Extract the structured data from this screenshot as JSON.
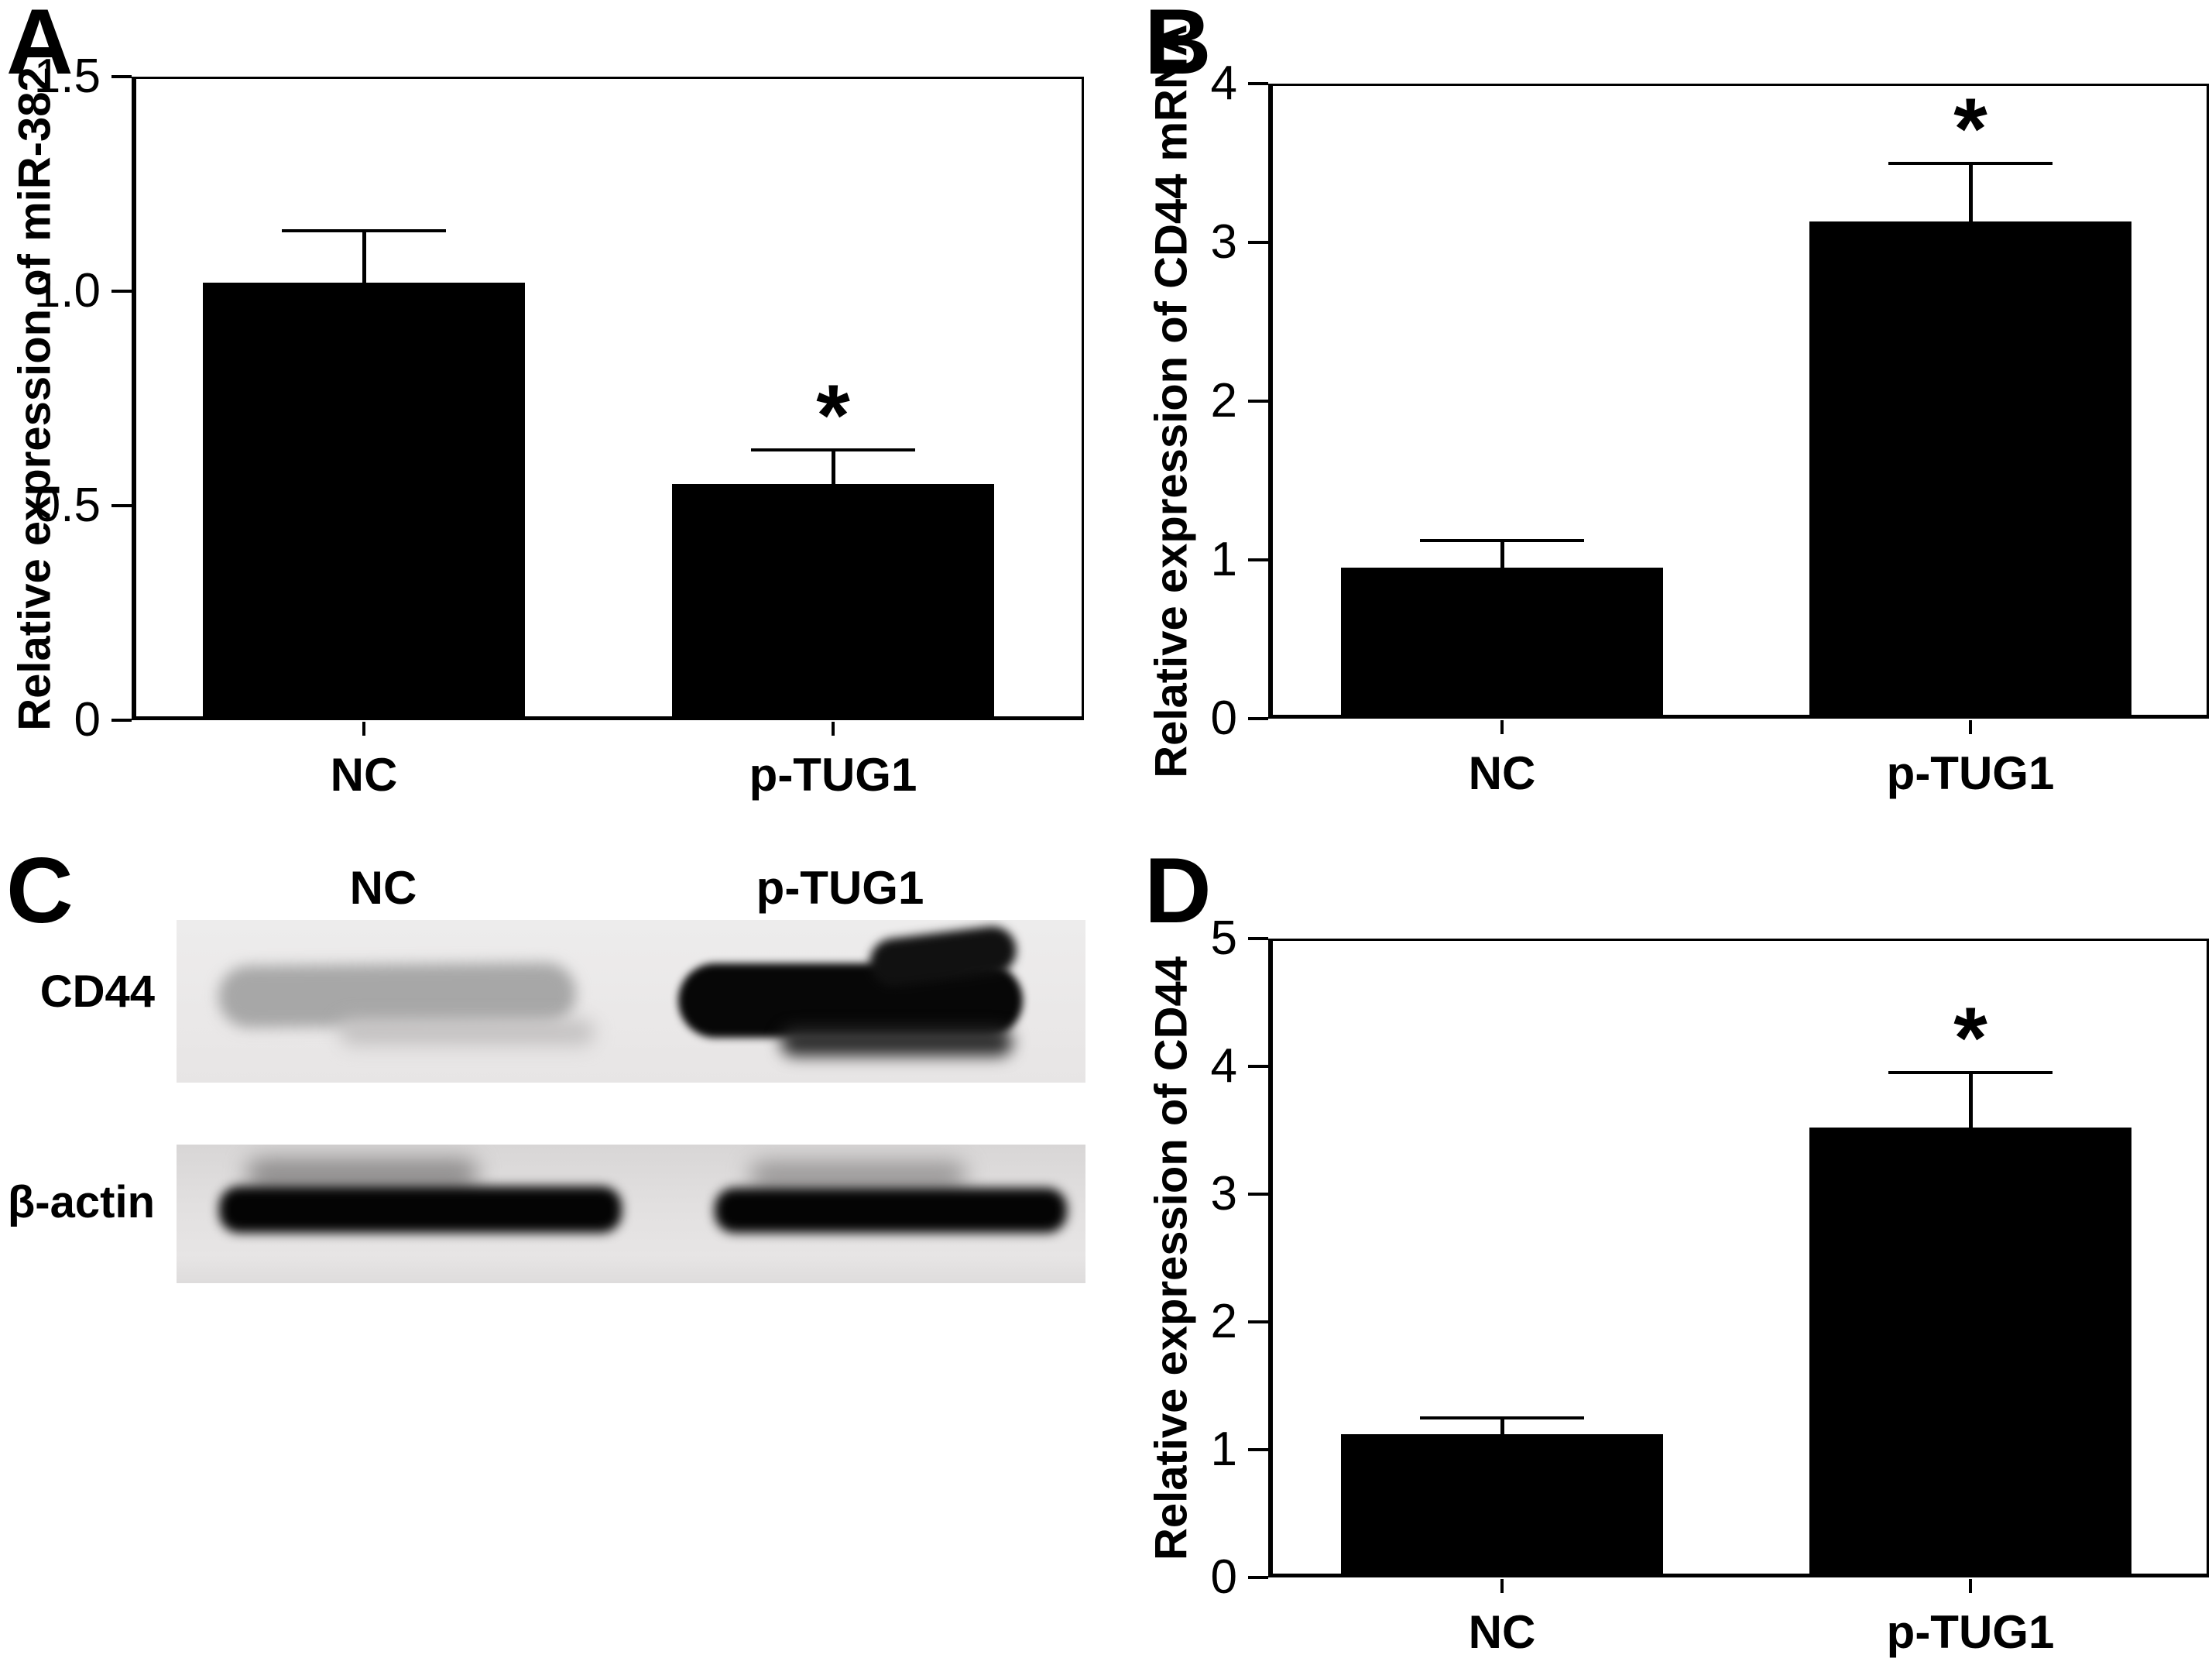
{
  "figure": {
    "background": "#ffffff",
    "bar_color": "#000000",
    "letters": {
      "A": "A",
      "B": "B",
      "C": "C",
      "D": "D"
    }
  },
  "chart_data": [
    {
      "panel": "A",
      "type": "bar",
      "title": "",
      "xlabel": "",
      "ylabel": "Relative expression of miR-382",
      "categories": [
        "NC",
        "p-TUG1"
      ],
      "values": [
        1.02,
        0.55
      ],
      "errors_upper": [
        0.12,
        0.08
      ],
      "significance": [
        "",
        "*"
      ],
      "ylim": [
        0,
        1.5
      ],
      "yticks": [
        0,
        0.5,
        1,
        1.5
      ],
      "ytick_labels": [
        "0",
        "0.5",
        "1.0",
        "1.5"
      ],
      "grid": false,
      "legend": "none",
      "bar_color": "#000000"
    },
    {
      "panel": "B",
      "type": "bar",
      "title": "",
      "xlabel": "",
      "ylabel": "Relative expression of CD44 mRNA",
      "categories": [
        "NC",
        "p-TUG1"
      ],
      "values": [
        0.95,
        3.13
      ],
      "errors_upper": [
        0.17,
        0.37
      ],
      "significance": [
        "",
        "*"
      ],
      "ylim": [
        0,
        4
      ],
      "yticks": [
        0,
        1,
        2,
        3,
        4
      ],
      "ytick_labels": [
        "0",
        "1",
        "2",
        "3",
        "4"
      ],
      "grid": false,
      "legend": "none",
      "bar_color": "#000000"
    },
    {
      "panel": "D",
      "type": "bar",
      "title": "",
      "xlabel": "",
      "ylabel": "Relative expression of CD44",
      "categories": [
        "NC",
        "p-TUG1"
      ],
      "values": [
        1.12,
        3.52
      ],
      "errors_upper": [
        0.13,
        0.43
      ],
      "significance": [
        "",
        "*"
      ],
      "ylim": [
        0,
        5
      ],
      "yticks": [
        0,
        1,
        2,
        3,
        4,
        5
      ],
      "ytick_labels": [
        "0",
        "1",
        "2",
        "3",
        "4",
        "5"
      ],
      "grid": false,
      "legend": "none",
      "bar_color": "#000000"
    }
  ],
  "blot": {
    "panel": "C",
    "lane_labels": [
      "NC",
      "p-TUG1"
    ],
    "row_labels": [
      "CD44",
      "β-actin"
    ],
    "bands": [
      {
        "row": "CD44",
        "lane": "NC",
        "intensity": "weak",
        "color": "#a7a7a7"
      },
      {
        "row": "CD44",
        "lane": "p-TUG1",
        "intensity": "strong",
        "color": "#070707"
      },
      {
        "row": "β-actin",
        "lane": "NC",
        "intensity": "strong",
        "color": "#040404"
      },
      {
        "row": "β-actin",
        "lane": "p-TUG1",
        "intensity": "strong",
        "color": "#040404"
      }
    ]
  }
}
